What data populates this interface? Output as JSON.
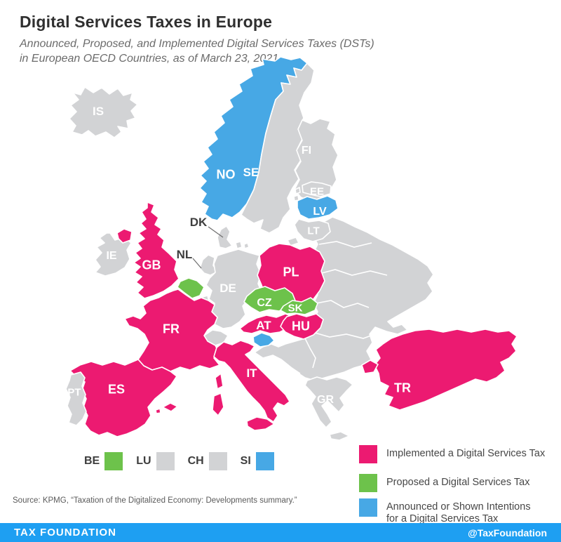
{
  "header": {
    "title": "Digital Services Taxes in Europe",
    "subtitle_line1": "Announced, Proposed, and Implemented Digital Services Taxes (DSTs)",
    "subtitle_line2": "in European OECD Countries, as of March 23, 2021"
  },
  "colors": {
    "implemented": "#ec1a71",
    "proposed": "#6dc24b",
    "announced": "#47a8e5",
    "none": "#d2d3d5",
    "map_label": "#ffffff",
    "dark_label": "#3e3e3e",
    "footer_bar": "#1e9ff2"
  },
  "map": {
    "countries": [
      {
        "code": "IS",
        "status": "none",
        "label_on_map": true
      },
      {
        "code": "NO",
        "status": "announced",
        "label_on_map": true
      },
      {
        "code": "SE",
        "status": "none",
        "label_on_map": true
      },
      {
        "code": "FI",
        "status": "none",
        "label_on_map": true
      },
      {
        "code": "EE",
        "status": "none",
        "label_on_map": true
      },
      {
        "code": "LV",
        "status": "announced",
        "label_on_map": true
      },
      {
        "code": "LT",
        "status": "none",
        "label_on_map": true
      },
      {
        "code": "DK",
        "status": "none",
        "label_on_map": false,
        "callout": true
      },
      {
        "code": "IE",
        "status": "none",
        "label_on_map": true
      },
      {
        "code": "GB",
        "status": "implemented",
        "label_on_map": true
      },
      {
        "code": "NL",
        "status": "none",
        "label_on_map": false,
        "callout": true
      },
      {
        "code": "BE",
        "status": "proposed",
        "label_on_map": false
      },
      {
        "code": "LU",
        "status": "none",
        "label_on_map": false
      },
      {
        "code": "DE",
        "status": "none",
        "label_on_map": true
      },
      {
        "code": "PL",
        "status": "implemented",
        "label_on_map": true
      },
      {
        "code": "CZ",
        "status": "proposed",
        "label_on_map": true
      },
      {
        "code": "SK",
        "status": "proposed",
        "label_on_map": true
      },
      {
        "code": "AT",
        "status": "implemented",
        "label_on_map": true
      },
      {
        "code": "HU",
        "status": "implemented",
        "label_on_map": true
      },
      {
        "code": "SI",
        "status": "announced",
        "label_on_map": false
      },
      {
        "code": "CH",
        "status": "none",
        "label_on_map": false
      },
      {
        "code": "FR",
        "status": "implemented",
        "label_on_map": true
      },
      {
        "code": "IT",
        "status": "implemented",
        "label_on_map": true
      },
      {
        "code": "ES",
        "status": "implemented",
        "label_on_map": true
      },
      {
        "code": "PT",
        "status": "none",
        "label_on_map": true
      },
      {
        "code": "GR",
        "status": "none",
        "label_on_map": true
      },
      {
        "code": "TR",
        "status": "implemented",
        "label_on_map": true
      }
    ]
  },
  "mini_legend": [
    {
      "code": "BE",
      "status": "proposed"
    },
    {
      "code": "LU",
      "status": "none"
    },
    {
      "code": "CH",
      "status": "none"
    },
    {
      "code": "SI",
      "status": "announced"
    }
  ],
  "legend": [
    {
      "status": "implemented",
      "lines": [
        "Implemented a Digital Services Tax"
      ]
    },
    {
      "status": "proposed",
      "lines": [
        "Proposed a Digital Services Tax"
      ]
    },
    {
      "status": "announced",
      "lines": [
        "Announced or Shown Intentions",
        "for a Digital Services Tax"
      ]
    }
  ],
  "source": "Source: KPMG, “Taxation of the Digitalized Economy: Developments summary.”",
  "footer": {
    "left": "TAX FOUNDATION",
    "right": "@TaxFoundation"
  }
}
